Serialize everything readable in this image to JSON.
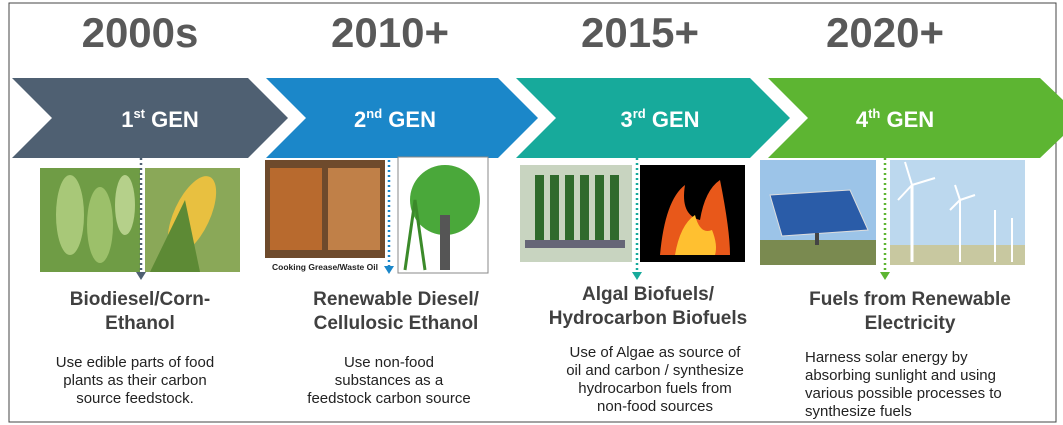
{
  "stages": [
    {
      "year": "2000s",
      "gen": {
        "number": "1",
        "suffix": "st",
        "label": "GEN"
      },
      "heading": [
        "Biodiesel/Corn-",
        "Ethanol"
      ],
      "description": [
        "Use edible parts of food",
        "plants as their carbon",
        "source feedstock."
      ]
    },
    {
      "year": "2010+",
      "gen": {
        "number": "2",
        "suffix": "nd",
        "label": "GEN"
      },
      "heading": [
        "Renewable Diesel/",
        "Cellulosic Ethanol"
      ],
      "description": [
        "Use non-food",
        "substances as a",
        "feedstock carbon source"
      ]
    },
    {
      "year": "2015+",
      "gen": {
        "number": "3",
        "suffix": "rd",
        "label": "GEN"
      },
      "heading": [
        "Algal Biofuels/",
        "Hydrocarbon Biofuels"
      ],
      "description": [
        "Use of Algae as source of",
        "oil and carbon / synthesize",
        "hydrocarbon fuels from",
        "non-food sources"
      ]
    },
    {
      "year": "2020+",
      "gen": {
        "number": "4",
        "suffix": "th",
        "label": "GEN"
      },
      "heading": [
        "Fuels from Renewable",
        "Electricity"
      ],
      "description": [
        "Harness solar energy by",
        "absorbing sunlight and using",
        "various possible processes to",
        "synthesize fuels"
      ]
    }
  ],
  "image_caption": "Cooking Grease/Waste Oil"
}
